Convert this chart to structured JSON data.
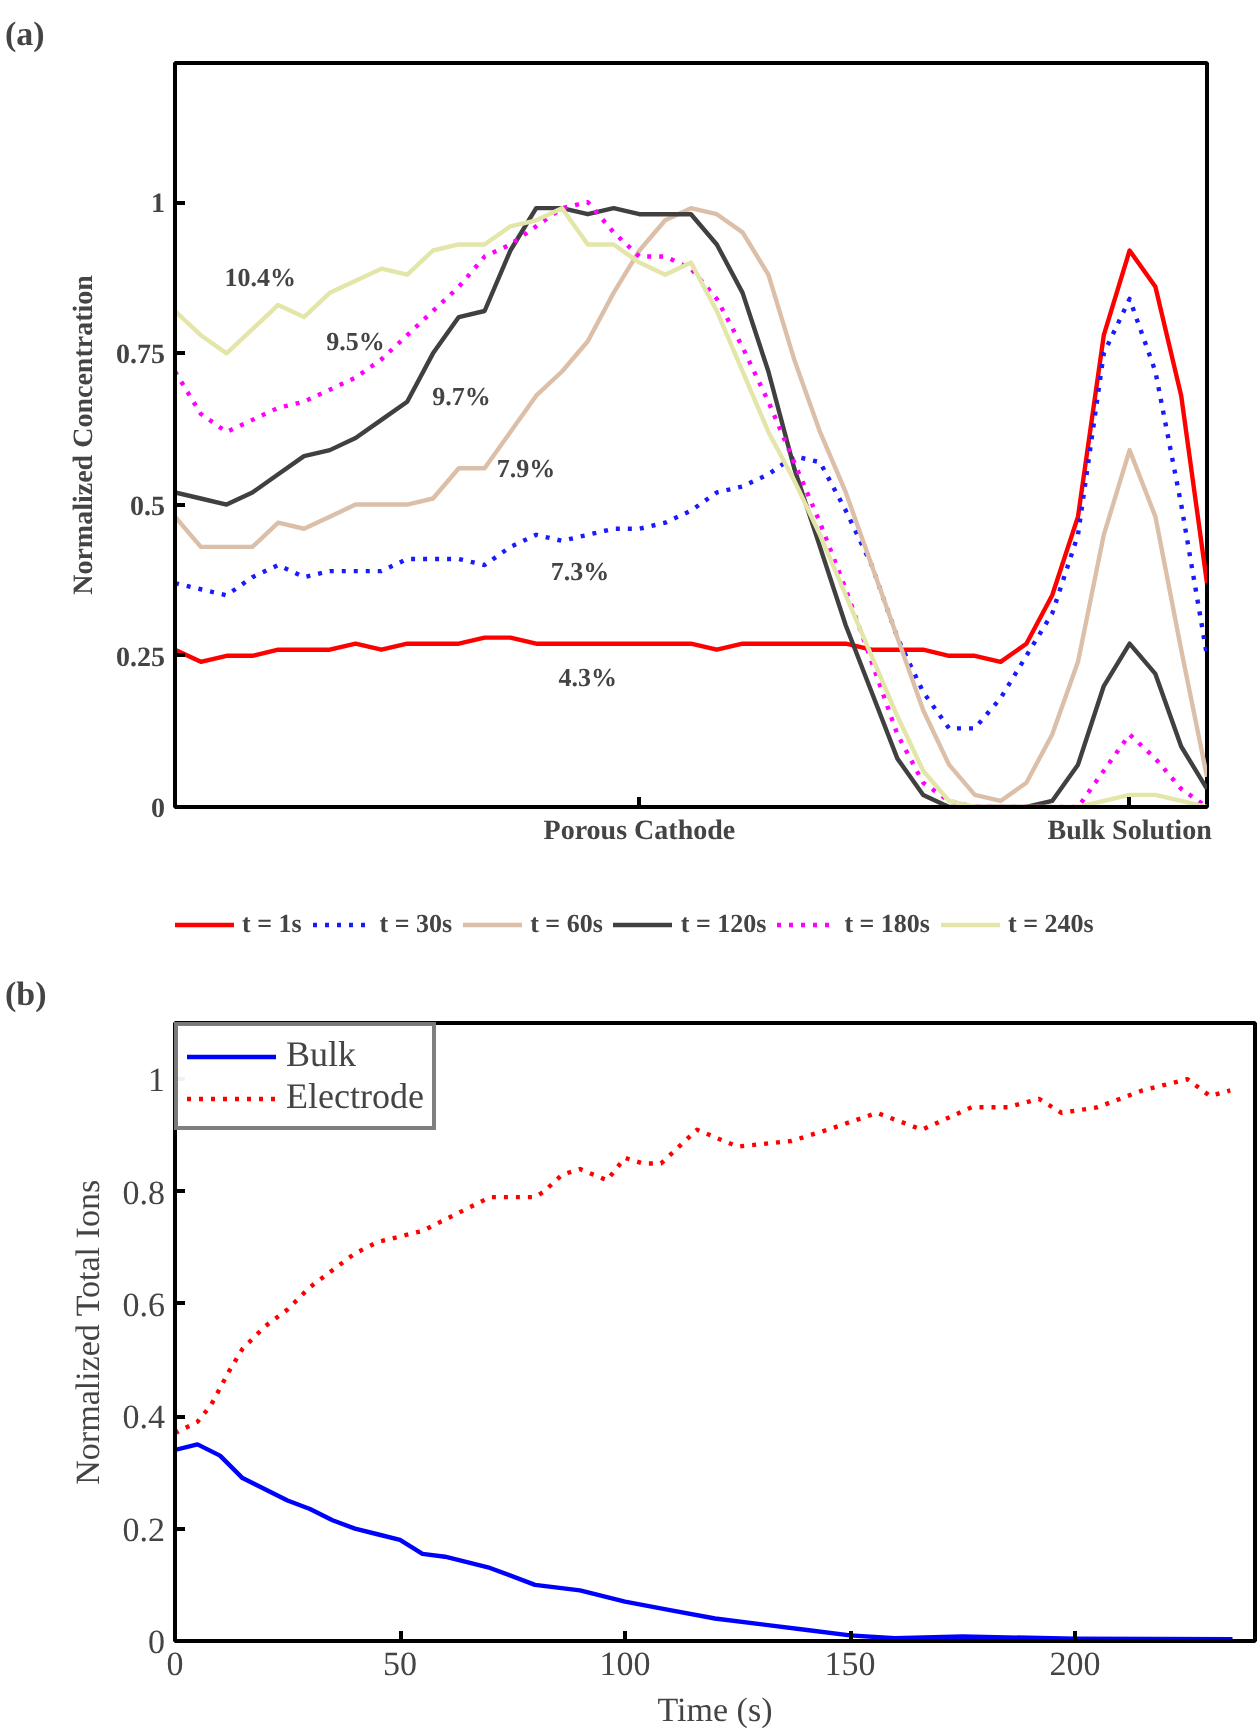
{
  "chart_data": [
    {
      "type": "line",
      "title": "(a)",
      "ylabel": "Normalized Concentration",
      "categories": [
        null,
        null,
        null,
        null,
        null,
        null,
        null,
        null,
        null,
        null,
        null,
        null,
        null,
        null,
        null,
        null,
        null,
        null,
        "Porous Cathode",
        null,
        null,
        null,
        null,
        null,
        null,
        null,
        null,
        null,
        null,
        null,
        null,
        null,
        null,
        null,
        null,
        null,
        null,
        "Bulk Solution",
        null,
        null,
        null
      ],
      "ylim": [
        0,
        1.23
      ],
      "yticks": [
        0,
        0.25,
        0.5,
        0.75,
        1
      ],
      "legend": "bottom",
      "series": [
        {
          "name": "t = 1s",
          "color": "#ff0000",
          "line_style": "solid",
          "values": [
            0.26,
            0.24,
            0.25,
            0.25,
            0.26,
            0.26,
            0.26,
            0.27,
            0.26,
            0.27,
            0.27,
            0.27,
            0.28,
            0.28,
            0.27,
            0.27,
            0.27,
            0.27,
            0.27,
            0.27,
            0.27,
            0.26,
            0.27,
            0.27,
            0.27,
            0.27,
            0.27,
            0.26,
            0.26,
            0.26,
            0.25,
            0.25,
            0.24,
            0.27,
            0.35,
            0.48,
            0.78,
            0.92,
            0.86,
            0.68,
            0.37
          ]
        },
        {
          "name": "t = 30s",
          "color": "#1a1aff",
          "line_style": "dotted",
          "values": [
            0.37,
            0.36,
            0.35,
            0.38,
            0.4,
            0.38,
            0.39,
            0.39,
            0.39,
            0.41,
            0.41,
            0.41,
            0.4,
            0.43,
            0.45,
            0.44,
            0.45,
            0.46,
            0.46,
            0.47,
            0.49,
            0.52,
            0.53,
            0.55,
            0.58,
            0.57,
            0.49,
            0.4,
            0.28,
            0.19,
            0.13,
            0.13,
            0.18,
            0.25,
            0.32,
            0.45,
            0.75,
            0.84,
            0.72,
            0.5,
            0.25
          ]
        },
        {
          "name": "t = 60s",
          "color": "#dcbfa8",
          "line_style": "solid",
          "values": [
            0.48,
            0.43,
            0.43,
            0.43,
            0.47,
            0.46,
            0.48,
            0.5,
            0.5,
            0.5,
            0.51,
            0.56,
            0.56,
            0.62,
            0.68,
            0.72,
            0.77,
            0.85,
            0.92,
            0.97,
            0.99,
            0.98,
            0.95,
            0.88,
            0.74,
            0.62,
            0.52,
            0.4,
            0.28,
            0.16,
            0.07,
            0.02,
            0.01,
            0.04,
            0.12,
            0.24,
            0.45,
            0.59,
            0.48,
            0.26,
            0.05
          ]
        },
        {
          "name": "t = 120s",
          "color": "#404040",
          "line_style": "solid",
          "values": [
            0.52,
            0.51,
            0.5,
            0.52,
            0.55,
            0.58,
            0.59,
            0.61,
            0.64,
            0.67,
            0.75,
            0.81,
            0.82,
            0.92,
            0.99,
            0.99,
            0.98,
            0.99,
            0.98,
            0.98,
            0.98,
            0.93,
            0.85,
            0.72,
            0.56,
            0.43,
            0.3,
            0.19,
            0.08,
            0.02,
            0,
            0,
            0,
            0,
            0.01,
            0.07,
            0.2,
            0.27,
            0.22,
            0.1,
            0.03
          ]
        },
        {
          "name": "t = 180s",
          "color": "#ff00ff",
          "line_style": "dotted",
          "values": [
            0.72,
            0.65,
            0.62,
            0.64,
            0.66,
            0.67,
            0.69,
            0.71,
            0.74,
            0.78,
            0.82,
            0.86,
            0.91,
            0.93,
            0.96,
            0.99,
            1.0,
            0.95,
            0.91,
            0.91,
            0.89,
            0.84,
            0.76,
            0.67,
            0.57,
            0.47,
            0.36,
            0.24,
            0.12,
            0.04,
            0.01,
            0,
            0,
            0,
            0,
            0,
            0.06,
            0.12,
            0.08,
            0.03,
            0
          ]
        },
        {
          "name": "t = 240s",
          "color": "#e3e6a8",
          "line_style": "solid",
          "values": [
            0.82,
            0.78,
            0.75,
            0.79,
            0.83,
            0.81,
            0.85,
            0.87,
            0.89,
            0.88,
            0.92,
            0.93,
            0.93,
            0.96,
            0.97,
            0.99,
            0.93,
            0.93,
            0.9,
            0.88,
            0.9,
            0.82,
            0.72,
            0.62,
            0.54,
            0.45,
            0.35,
            0.25,
            0.15,
            0.06,
            0.01,
            0,
            0,
            0,
            0,
            0,
            0.01,
            0.02,
            0.02,
            0.01,
            0
          ]
        }
      ],
      "annotations": [
        "10.4%",
        "9.5%",
        "9.7%",
        "7.9%",
        "7.3%",
        "4.3%"
      ]
    },
    {
      "type": "line",
      "title": "(b)",
      "xlabel": "Time (s)",
      "ylabel": "Normalized Total Ions",
      "xlim": [
        0,
        240
      ],
      "ylim": [
        0,
        1.1
      ],
      "xticks": [
        0,
        50,
        100,
        150,
        200
      ],
      "yticks": [
        0,
        0.2,
        0.4,
        0.6,
        0.8,
        1
      ],
      "legend": "top left",
      "series": [
        {
          "name": "Bulk",
          "color": "#0000ff",
          "line_style": "solid",
          "x": [
            0,
            5,
            10,
            15,
            20,
            25,
            30,
            35,
            40,
            45,
            50,
            55,
            60,
            70,
            80,
            90,
            100,
            110,
            120,
            130,
            140,
            150,
            160,
            175,
            200,
            235
          ],
          "values": [
            0.34,
            0.35,
            0.33,
            0.29,
            0.27,
            0.25,
            0.235,
            0.215,
            0.2,
            0.19,
            0.18,
            0.155,
            0.15,
            0.13,
            0.1,
            0.09,
            0.07,
            0.055,
            0.04,
            0.03,
            0.02,
            0.01,
            0.005,
            0.008,
            0.004,
            0.003
          ]
        },
        {
          "name": "Electrode",
          "color": "#ff0000",
          "line_style": "dotted",
          "x": [
            0,
            5,
            8,
            12,
            15,
            20,
            25,
            30,
            35,
            40,
            45,
            50,
            55,
            60,
            65,
            70,
            80,
            82,
            86,
            90,
            96,
            100,
            104,
            108,
            116,
            125,
            137,
            145,
            156,
            166,
            177,
            185,
            192,
            197,
            205,
            215,
            225,
            230,
            234.5
          ],
          "values": [
            0.37,
            0.39,
            0.42,
            0.48,
            0.52,
            0.56,
            0.59,
            0.63,
            0.66,
            0.69,
            0.71,
            0.72,
            0.73,
            0.75,
            0.77,
            0.79,
            0.79,
            0.8,
            0.83,
            0.84,
            0.82,
            0.86,
            0.85,
            0.85,
            0.91,
            0.88,
            0.89,
            0.91,
            0.94,
            0.91,
            0.95,
            0.95,
            0.965,
            0.94,
            0.95,
            0.98,
            1.0,
            0.97,
            0.98
          ]
        }
      ]
    }
  ]
}
